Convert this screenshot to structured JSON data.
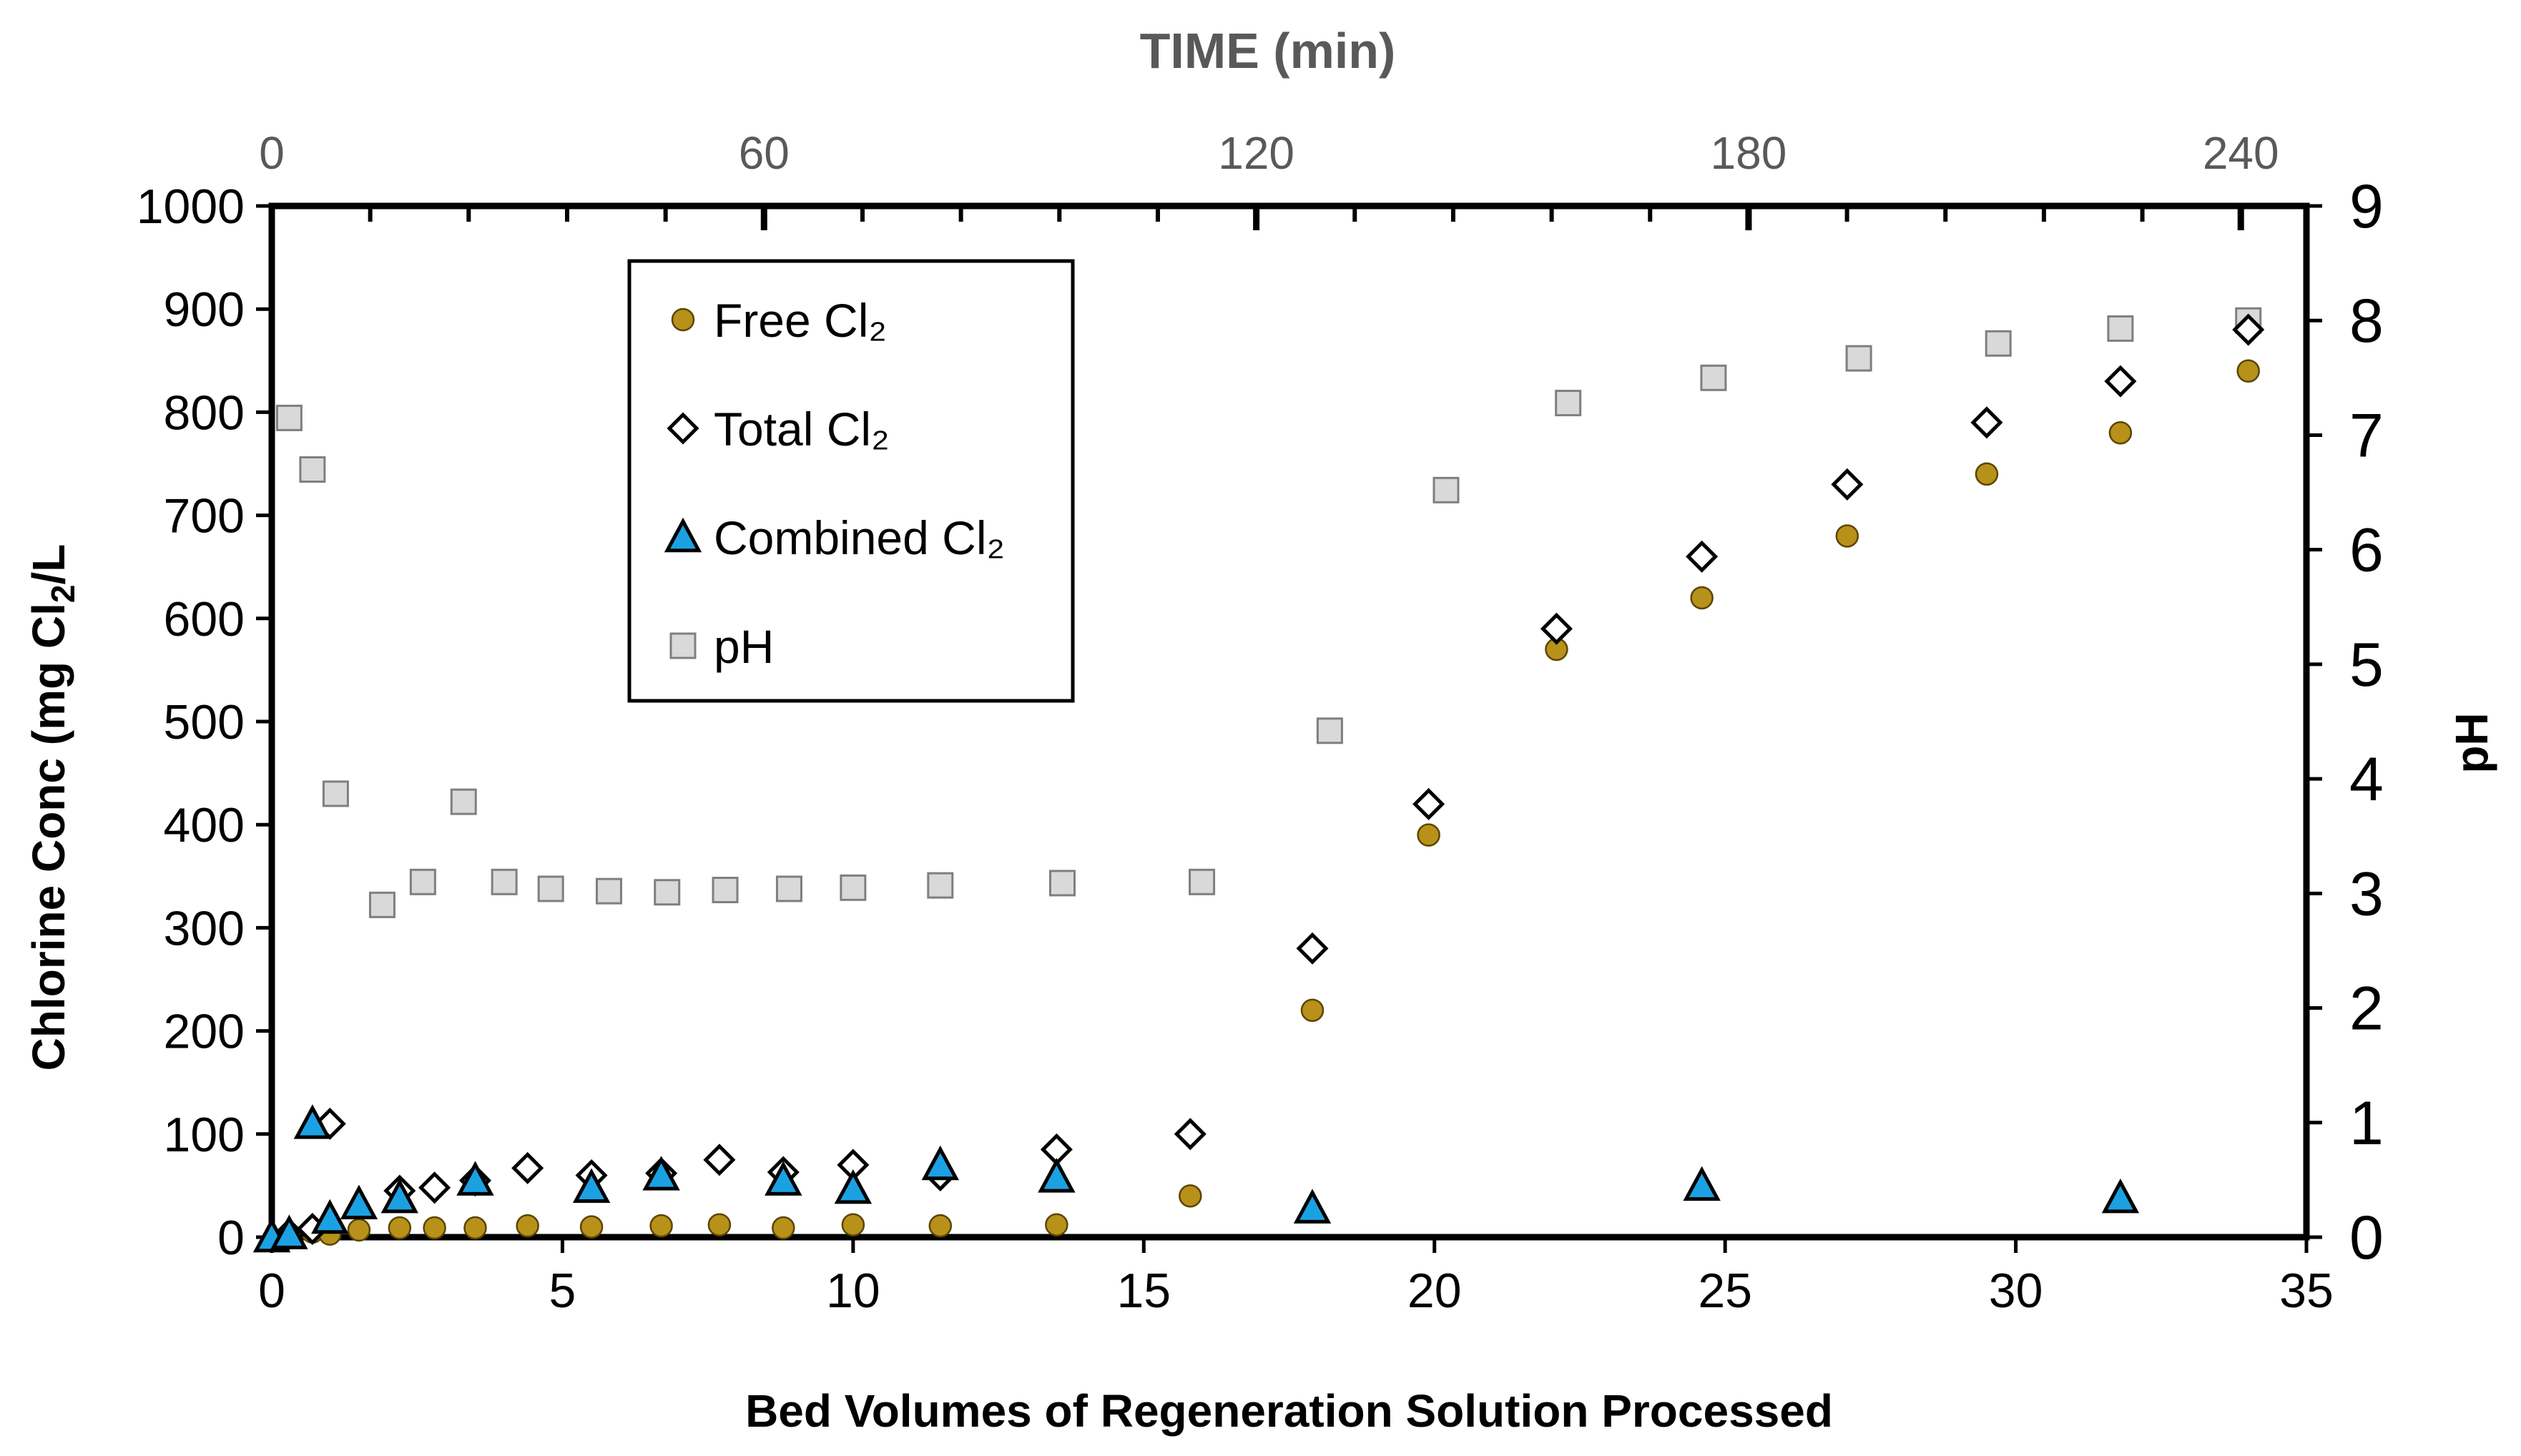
{
  "chart_data": {
    "type": "scatter",
    "xlabel": "Bed Volumes of Regeneration Solution Processed",
    "ylabel_left": "Chlorine Conc   (mg Cl",
    "ylabel_left_sub": "2",
    "ylabel_left_end": "/L",
    "ylabel_right": "pH",
    "x2label": "TIME (min)",
    "xlim": [
      0,
      35
    ],
    "xticks": [
      0,
      5,
      10,
      15,
      20,
      25,
      30,
      35
    ],
    "ylim_left": [
      0,
      1000
    ],
    "yticks_left": [
      0,
      100,
      200,
      300,
      400,
      500,
      600,
      700,
      800,
      900,
      1000
    ],
    "ylim_right": [
      0,
      9
    ],
    "yticks_right": [
      0,
      1,
      2,
      3,
      4,
      5,
      6,
      7,
      8,
      9
    ],
    "x2lim": [
      0,
      248
    ],
    "x2ticks": [
      0,
      60,
      120,
      180,
      240
    ],
    "grid": false,
    "legend_position": "top-left-center",
    "series": [
      {
        "name": "Free Cl₂",
        "marker": "circle",
        "axis": "left",
        "color": "#B8911A",
        "points": [
          [
            0.3,
            2
          ],
          [
            0.7,
            5
          ],
          [
            1.0,
            3
          ],
          [
            1.5,
            7
          ],
          [
            2.2,
            9
          ],
          [
            2.8,
            9
          ],
          [
            3.5,
            9
          ],
          [
            4.4,
            11
          ],
          [
            5.5,
            10
          ],
          [
            6.7,
            11
          ],
          [
            7.7,
            12
          ],
          [
            8.8,
            9
          ],
          [
            10.0,
            12
          ],
          [
            11.5,
            11
          ],
          [
            13.5,
            12
          ],
          [
            15.8,
            40
          ],
          [
            17.9,
            220
          ],
          [
            19.9,
            390
          ],
          [
            22.1,
            570
          ],
          [
            24.6,
            620
          ],
          [
            27.1,
            680
          ],
          [
            29.5,
            740
          ],
          [
            31.8,
            780
          ],
          [
            34.0,
            840
          ]
        ]
      },
      {
        "name": "Total Cl₂",
        "marker": "diamond",
        "axis": "left",
        "color": "#ffffff",
        "points": [
          [
            0.3,
            3
          ],
          [
            0.7,
            8
          ],
          [
            1.0,
            110
          ],
          [
            2.2,
            45
          ],
          [
            2.8,
            48
          ],
          [
            3.5,
            55
          ],
          [
            4.4,
            67
          ],
          [
            5.5,
            60
          ],
          [
            6.7,
            62
          ],
          [
            7.7,
            75
          ],
          [
            8.8,
            63
          ],
          [
            10.0,
            70
          ],
          [
            11.5,
            60
          ],
          [
            13.5,
            85
          ],
          [
            15.8,
            100
          ],
          [
            17.9,
            280
          ],
          [
            19.9,
            420
          ],
          [
            22.1,
            590
          ],
          [
            24.6,
            660
          ],
          [
            27.1,
            730
          ],
          [
            29.5,
            790
          ],
          [
            31.8,
            830
          ],
          [
            34.0,
            880
          ]
        ]
      },
      {
        "name": "Combined Cl₂",
        "marker": "triangle",
        "axis": "left",
        "color": "#1BA1E2",
        "points": [
          [
            0.0,
            0
          ],
          [
            0.3,
            3
          ],
          [
            0.7,
            110
          ],
          [
            1.0,
            18
          ],
          [
            1.5,
            32
          ],
          [
            2.2,
            38
          ],
          [
            3.5,
            55
          ],
          [
            5.5,
            48
          ],
          [
            6.7,
            60
          ],
          [
            8.8,
            55
          ],
          [
            10.0,
            47
          ],
          [
            11.5,
            70
          ],
          [
            13.5,
            58
          ],
          [
            17.9,
            28
          ],
          [
            24.6,
            50
          ],
          [
            31.8,
            38
          ]
        ]
      },
      {
        "name": "pH",
        "marker": "square",
        "axis": "right",
        "color": "#D9D9D9",
        "points": [
          [
            0.3,
            7.15
          ],
          [
            0.7,
            6.7
          ],
          [
            1.1,
            3.87
          ],
          [
            1.9,
            2.9
          ],
          [
            2.6,
            3.1
          ],
          [
            3.3,
            3.8
          ],
          [
            4.0,
            3.1
          ],
          [
            4.8,
            3.04
          ],
          [
            5.8,
            3.02
          ],
          [
            6.8,
            3.01
          ],
          [
            7.8,
            3.03
          ],
          [
            8.9,
            3.04
          ],
          [
            10.0,
            3.05
          ],
          [
            11.5,
            3.07
          ],
          [
            13.6,
            3.09
          ],
          [
            16.0,
            3.1
          ],
          [
            18.2,
            4.42
          ],
          [
            20.2,
            6.52
          ],
          [
            22.3,
            7.28
          ],
          [
            24.8,
            7.5
          ],
          [
            27.3,
            7.67
          ],
          [
            29.7,
            7.8
          ],
          [
            31.8,
            7.93
          ],
          [
            34.0,
            8.0
          ]
        ]
      }
    ]
  }
}
